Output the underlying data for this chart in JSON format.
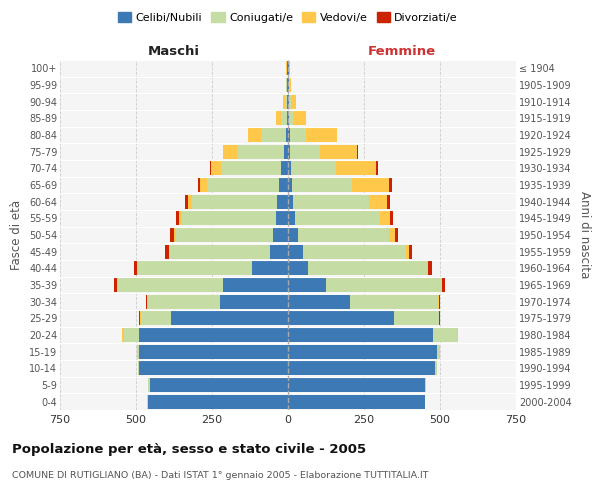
{
  "age_groups": [
    "0-4",
    "5-9",
    "10-14",
    "15-19",
    "20-24",
    "25-29",
    "30-34",
    "35-39",
    "40-44",
    "45-49",
    "50-54",
    "55-59",
    "60-64",
    "65-69",
    "70-74",
    "75-79",
    "80-84",
    "85-89",
    "90-94",
    "95-99",
    "100+"
  ],
  "birth_years": [
    "2000-2004",
    "1995-1999",
    "1990-1994",
    "1985-1989",
    "1980-1984",
    "1975-1979",
    "1970-1974",
    "1965-1969",
    "1960-1964",
    "1955-1959",
    "1950-1954",
    "1945-1949",
    "1940-1944",
    "1935-1939",
    "1930-1934",
    "1925-1929",
    "1920-1924",
    "1915-1919",
    "1910-1914",
    "1905-1909",
    "≤ 1904"
  ],
  "male": {
    "celibi": [
      460,
      455,
      490,
      490,
      490,
      385,
      225,
      215,
      120,
      60,
      50,
      40,
      35,
      28,
      22,
      14,
      8,
      4,
      3,
      2,
      2
    ],
    "coniugati": [
      3,
      4,
      3,
      5,
      50,
      100,
      235,
      345,
      375,
      330,
      320,
      310,
      280,
      240,
      200,
      155,
      80,
      20,
      8,
      3,
      2
    ],
    "vedovi": [
      1,
      1,
      1,
      2,
      5,
      2,
      3,
      3,
      2,
      3,
      5,
      10,
      15,
      20,
      30,
      45,
      45,
      15,
      5,
      2,
      1
    ],
    "divorziati": [
      0,
      0,
      0,
      1,
      2,
      3,
      5,
      10,
      10,
      10,
      12,
      10,
      10,
      8,
      5,
      0,
      0,
      0,
      0,
      0,
      0
    ]
  },
  "female": {
    "nubili": [
      450,
      450,
      485,
      490,
      478,
      348,
      205,
      125,
      65,
      48,
      33,
      23,
      18,
      14,
      10,
      8,
      6,
      4,
      3,
      2,
      2
    ],
    "coniugate": [
      2,
      3,
      4,
      8,
      78,
      148,
      288,
      380,
      392,
      340,
      298,
      278,
      248,
      198,
      148,
      98,
      54,
      14,
      7,
      3,
      2
    ],
    "vedove": [
      0,
      1,
      1,
      1,
      2,
      2,
      3,
      3,
      5,
      10,
      20,
      35,
      60,
      120,
      130,
      120,
      100,
      40,
      15,
      5,
      1
    ],
    "divorziate": [
      0,
      0,
      0,
      1,
      2,
      3,
      5,
      10,
      12,
      10,
      12,
      10,
      10,
      10,
      8,
      5,
      0,
      0,
      0,
      0,
      0
    ]
  },
  "colors": {
    "celibi": "#3d7ab5",
    "coniugati": "#c5dda4",
    "vedovi": "#ffc84a",
    "divorziati": "#cc2200"
  },
  "xlim": 750,
  "title": "Popolazione per età, sesso e stato civile - 2005",
  "subtitle": "COMUNE DI RUTIGLIANO (BA) - Dati ISTAT 1° gennaio 2005 - Elaborazione TUTTITALIA.IT",
  "ylabel_left": "Fasce di età",
  "ylabel_right": "Anni di nascita",
  "legend_labels": [
    "Celibi/Nubili",
    "Coniugati/e",
    "Vedovi/e",
    "Divorziati/e"
  ],
  "maschi_label": "Maschi",
  "femmine_label": "Femmine",
  "xticks": [
    750,
    500,
    250,
    0,
    250,
    500,
    750
  ],
  "background_color": "#f5f5f5"
}
